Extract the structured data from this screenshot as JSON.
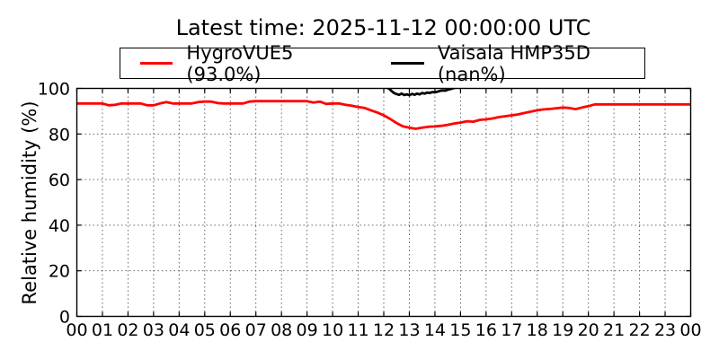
{
  "title": "Latest time: 2025-11-12 00:00:00 UTC",
  "legend": {
    "entries": [
      {
        "label": "HygroVUE5 (93.0%)",
        "color": "#ff0000",
        "latest_value": "93.0%"
      },
      {
        "label": "Vaisala HMP35D (nan%)",
        "color": "#000000",
        "latest_value": "nan%"
      }
    ],
    "position": "top-center"
  },
  "chart_data": {
    "type": "line",
    "title": "Latest time: 2025-11-12 00:00:00 UTC",
    "xlabel": "",
    "ylabel": "Relative humidity (%)",
    "xlim": [
      0,
      24
    ],
    "ylim": [
      0,
      100
    ],
    "y_ticks": [
      0,
      20,
      40,
      60,
      80,
      100
    ],
    "x_ticks": [
      0,
      1,
      2,
      3,
      4,
      5,
      6,
      7,
      8,
      9,
      10,
      11,
      12,
      13,
      14,
      15,
      16,
      17,
      18,
      19,
      20,
      21,
      22,
      23,
      24
    ],
    "x_tick_labels": [
      "00",
      "01",
      "02",
      "03",
      "04",
      "05",
      "06",
      "07",
      "08",
      "09",
      "10",
      "11",
      "12",
      "13",
      "14",
      "15",
      "16",
      "17",
      "18",
      "19",
      "20",
      "21",
      "22",
      "23",
      "00"
    ],
    "grid": true,
    "grid_style": "dotted",
    "series": [
      {
        "name": "HygroVUE5 (93.0%)",
        "color": "#ff0000",
        "latest": 93.0,
        "x": [
          0,
          0.25,
          0.5,
          0.75,
          1,
          1.25,
          1.5,
          1.75,
          2,
          2.25,
          2.5,
          2.75,
          3,
          3.25,
          3.5,
          3.75,
          4,
          4.25,
          4.5,
          4.75,
          5,
          5.25,
          5.5,
          5.75,
          6,
          6.25,
          6.5,
          6.75,
          7,
          7.25,
          7.5,
          7.75,
          8,
          8.25,
          8.5,
          8.75,
          9,
          9.25,
          9.5,
          9.75,
          10,
          10.25,
          10.5,
          10.75,
          11,
          11.25,
          11.5,
          11.75,
          12,
          12.25,
          12.5,
          12.75,
          13,
          13.25,
          13.5,
          13.75,
          14,
          14.25,
          14.5,
          14.75,
          15,
          15.25,
          15.5,
          15.75,
          16,
          16.25,
          16.5,
          16.75,
          17,
          17.25,
          17.5,
          17.75,
          18,
          18.25,
          18.5,
          18.75,
          19,
          19.25,
          19.5,
          19.75,
          20,
          20.25,
          20.5,
          20.75,
          21,
          21.25,
          21.5,
          21.75,
          22,
          22.25,
          22.5,
          22.75,
          23,
          23.25,
          23.5,
          23.75,
          24
        ],
        "values": [
          93.4,
          93.4,
          93.4,
          93.4,
          93.4,
          92.6,
          92.8,
          93.4,
          93.4,
          93.4,
          93.4,
          92.6,
          92.6,
          93.4,
          94.0,
          93.4,
          93.4,
          93.4,
          93.4,
          94.0,
          94.2,
          94.2,
          93.6,
          93.4,
          93.4,
          93.4,
          93.4,
          94.2,
          94.4,
          94.4,
          94.4,
          94.4,
          94.4,
          94.4,
          94.4,
          94.4,
          94.4,
          93.8,
          94.2,
          93.2,
          93.4,
          93.4,
          92.8,
          92.4,
          91.8,
          91.4,
          90.4,
          89.4,
          88.2,
          86.6,
          84.8,
          83.4,
          82.8,
          82.3,
          82.8,
          83.2,
          83.3,
          83.6,
          84.0,
          84.6,
          85.0,
          85.6,
          85.4,
          86.2,
          86.4,
          86.8,
          87.4,
          87.8,
          88.2,
          88.6,
          89.2,
          89.8,
          90.4,
          90.8,
          91.0,
          91.3,
          91.6,
          91.4,
          90.9,
          91.6,
          92.2,
          93.0,
          93.0,
          93.0,
          93.0,
          93.0,
          93.0,
          93.0,
          93.0,
          93.0,
          93.0,
          93.0,
          93.0,
          93.0,
          93.0,
          93.0,
          93.0
        ]
      },
      {
        "name": "Vaisala HMP35D (nan%)",
        "color": "#000000",
        "latest": "nan",
        "note": "off-scale above 100% except dip between ~12:12 and ~14:42",
        "x": [
          12,
          12.1,
          12.2,
          12.3,
          12.4,
          12.5,
          12.6,
          12.7,
          12.8,
          12.9,
          13,
          13.1,
          13.2,
          13.3,
          13.4,
          13.5,
          13.6,
          13.7,
          13.8,
          13.9,
          14,
          14.1,
          14.2,
          14.3,
          14.4,
          14.5,
          14.6,
          14.7,
          14.8,
          14.9,
          15
        ],
        "values": [
          100.8,
          100.4,
          100.0,
          98.9,
          98.0,
          97.5,
          97.2,
          97.7,
          97.1,
          97.4,
          97.0,
          97.6,
          97.2,
          97.7,
          97.4,
          98.0,
          97.7,
          98.2,
          98.0,
          98.4,
          98.3,
          98.6,
          98.9,
          99.1,
          99.0,
          99.4,
          99.7,
          100.0,
          100.4,
          100.8,
          101.0
        ]
      }
    ]
  }
}
